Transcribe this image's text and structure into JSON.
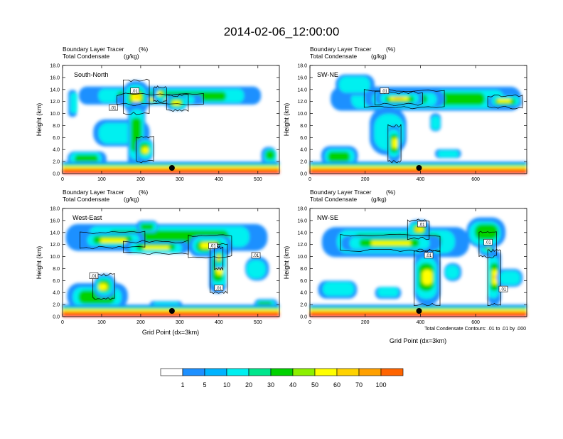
{
  "title": "2014-02-06_12:00:00",
  "chart_data": [
    {
      "type": "heatmap",
      "panel_label": "South-North",
      "left_title_1": "Boundary Layer Tracer",
      "left_title_1_unit": "(%)",
      "left_title_2": "Total Condensate",
      "left_title_2_unit": "(g/kg)",
      "ylabel": "Height (km)",
      "xlabel": "",
      "xlim": [
        0,
        555
      ],
      "ylim": [
        0,
        18
      ],
      "xticks": [
        "0",
        "100",
        "200",
        "300",
        "400",
        "500"
      ],
      "xtick_values": [
        0,
        100,
        200,
        300,
        400,
        500
      ],
      "marker_x": 280,
      "contour_labels": [
        {
          "text": ".01",
          "x": 185,
          "y": 13.8
        },
        {
          "text": ".01",
          "x": 130,
          "y": 11.0
        }
      ],
      "note": ""
    },
    {
      "type": "heatmap",
      "panel_label": "SW-NE",
      "left_title_1": "Boundary Layer Tracer",
      "left_title_1_unit": "(%)",
      "left_title_2": "Total Condensate",
      "left_title_2_unit": "(g/kg)",
      "ylabel": "Height (km)",
      "xlabel": "",
      "xlim": [
        0,
        785
      ],
      "ylim": [
        0,
        18
      ],
      "xticks": [
        "0",
        "200",
        "400",
        "600"
      ],
      "xtick_values": [
        0,
        200,
        400,
        600
      ],
      "marker_x": 395,
      "contour_labels": [
        {
          "text": ".01",
          "x": 270,
          "y": 13.8
        }
      ],
      "note": ""
    },
    {
      "type": "heatmap",
      "panel_label": "West-East",
      "left_title_1": "Boundary Layer Tracer",
      "left_title_1_unit": "(%)",
      "left_title_2": "Total Condensate",
      "left_title_2_unit": "(g/kg)",
      "ylabel": "Height (km)",
      "xlabel": "Grid Point (dx=3km)",
      "xlim": [
        0,
        555
      ],
      "ylim": [
        0,
        18
      ],
      "xticks": [
        "0",
        "100",
        "200",
        "300",
        "400",
        "500"
      ],
      "xtick_values": [
        0,
        100,
        200,
        300,
        400,
        500
      ],
      "marker_x": 280,
      "contour_labels": [
        {
          "text": ".01",
          "x": 385,
          "y": 11.8
        },
        {
          "text": ".01",
          "x": 495,
          "y": 10.2
        },
        {
          "text": ".01",
          "x": 80,
          "y": 6.8
        },
        {
          "text": ".01",
          "x": 400,
          "y": 4.8
        }
      ],
      "note": ""
    },
    {
      "type": "heatmap",
      "panel_label": "NW-SE",
      "left_title_1": "Boundary Layer Tracer",
      "left_title_1_unit": "(%)",
      "left_title_2": "Total Condensate",
      "left_title_2_unit": "(g/kg)",
      "ylabel": "Height (km)",
      "xlabel": "Grid Point (dx=3km)",
      "xlim": [
        0,
        785
      ],
      "ylim": [
        0,
        18
      ],
      "xticks": [
        "0",
        "200",
        "400",
        "600"
      ],
      "xtick_values": [
        0,
        200,
        400,
        600
      ],
      "marker_x": 395,
      "contour_labels": [
        {
          "text": ".01",
          "x": 405,
          "y": 15.4
        },
        {
          "text": ".01",
          "x": 645,
          "y": 12.4
        },
        {
          "text": ".01",
          "x": 430,
          "y": 10.2
        },
        {
          "text": ".01",
          "x": 700,
          "y": 4.6
        }
      ],
      "note": "Total Condensate Contours: .01 to .01 by .000"
    }
  ],
  "y_ticks": [
    "0.0",
    "2.0",
    "4.0",
    "6.0",
    "8.0",
    "10.0",
    "12.0",
    "14.0",
    "16.0",
    "18.0"
  ],
  "y_tick_values": [
    0,
    2,
    4,
    6,
    8,
    10,
    12,
    14,
    16,
    18
  ],
  "colorbar": {
    "colors": [
      "#ffffff",
      "#1e90ff",
      "#00b4ff",
      "#00f0f0",
      "#00e68c",
      "#00d200",
      "#8cf000",
      "#ffff00",
      "#ffd200",
      "#ffa000",
      "#ff6400",
      "#ff1e1e",
      "#e60000"
    ],
    "labels": [
      "1",
      "5",
      "10",
      "20",
      "30",
      "40",
      "50",
      "60",
      "70",
      "100"
    ]
  }
}
